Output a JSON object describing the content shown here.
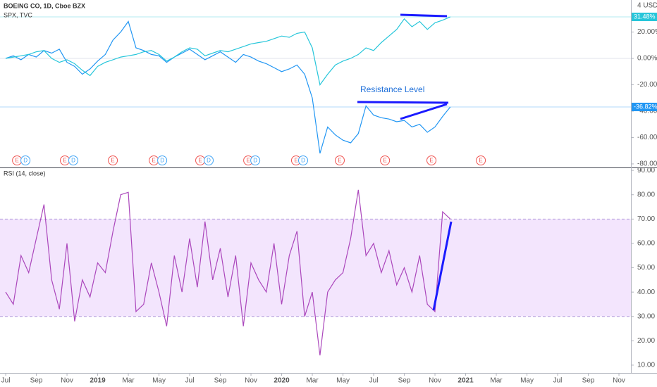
{
  "chart_data": [
    {
      "type": "line",
      "scale_label": "4 USD",
      "x": [
        0,
        0.5,
        1,
        1.5,
        2,
        2.5,
        3,
        3.5,
        4,
        4.5,
        5,
        5.5,
        6,
        6.5,
        7,
        7.5,
        8,
        8.5,
        9,
        9.5,
        10,
        10.5,
        11,
        11.5,
        12,
        12.5,
        13,
        13.5,
        14,
        14.5,
        15,
        15.5,
        16,
        16.5,
        17,
        17.5,
        18,
        18.5,
        19,
        19.5,
        20,
        20.5,
        21,
        21.5,
        22,
        22.5,
        23,
        23.5,
        24,
        24.5,
        25,
        25.5,
        26,
        26.5,
        27,
        27.5,
        28,
        28.5,
        29
      ],
      "xlim": [
        -0.37,
        40.78
      ],
      "ylim": [
        -82.7,
        44.3
      ],
      "yticks": [
        {
          "value": 20,
          "label": "20.00%"
        },
        {
          "value": 0,
          "label": "0.00%"
        },
        {
          "value": -20,
          "label": "-20.00%"
        },
        {
          "value": -40,
          "label": "-40.00%"
        },
        {
          "value": -60,
          "label": "-60.00%"
        },
        {
          "value": -80,
          "label": "-80.00%"
        }
      ],
      "series": [
        {
          "name": "BOEING CO, 1D, Cboe BZX",
          "color": "#2196f3",
          "values": [
            0,
            2,
            -1,
            3,
            1,
            6,
            4,
            7,
            -3,
            -6,
            -12,
            -8,
            -2,
            3,
            14,
            20,
            28,
            8,
            6,
            3,
            2,
            -3,
            1,
            4,
            7,
            3,
            -1,
            2,
            5,
            1,
            -3,
            3,
            1,
            -2,
            -4,
            -7,
            -10,
            -8,
            -5,
            -12,
            -30,
            -72,
            -52,
            -58,
            -62,
            -64,
            -57,
            -36,
            -43,
            -45,
            -46,
            -48,
            -47,
            -52,
            -50,
            -56,
            -52,
            -44,
            -36.82
          ],
          "last_label": {
            "value": -36.82,
            "label": "-36.82%"
          }
        },
        {
          "name": "SPX, TVC",
          "color": "#26c6da",
          "values": [
            0,
            1,
            2,
            3,
            5,
            6,
            0,
            -3,
            -1,
            -4,
            -9,
            -13,
            -6,
            -3,
            -1,
            1,
            2,
            3,
            5,
            6,
            3,
            -2,
            1,
            5,
            8,
            7,
            2,
            4,
            6,
            5,
            7,
            9,
            11,
            12,
            13,
            15,
            17,
            16,
            19,
            20,
            8,
            -20,
            -12,
            -5,
            -2,
            0,
            3,
            8,
            6,
            12,
            17,
            22,
            30,
            24,
            28,
            22,
            27,
            29,
            31.48
          ],
          "last_label": {
            "value": 31.48,
            "label": "31.48%"
          }
        }
      ],
      "annotation": "Resistance Level",
      "event_colors": {
        "E": "#ef5350",
        "D": "#42a5f5"
      },
      "events": [
        {
          "x": 0.74,
          "label": "E"
        },
        {
          "x": 1.29,
          "label": "D"
        },
        {
          "x": 3.86,
          "label": "E"
        },
        {
          "x": 4.41,
          "label": "D"
        },
        {
          "x": 6.99,
          "label": "E"
        },
        {
          "x": 9.66,
          "label": "E"
        },
        {
          "x": 10.21,
          "label": "D"
        },
        {
          "x": 12.69,
          "label": "E"
        },
        {
          "x": 13.24,
          "label": "D"
        },
        {
          "x": 15.82,
          "label": "E"
        },
        {
          "x": 16.28,
          "label": "D"
        },
        {
          "x": 18.94,
          "label": "E"
        },
        {
          "x": 19.4,
          "label": "D"
        },
        {
          "x": 21.79,
          "label": "E"
        },
        {
          "x": 24.74,
          "label": "E"
        },
        {
          "x": 27.77,
          "label": "E"
        },
        {
          "x": 30.99,
          "label": "E"
        }
      ]
    },
    {
      "type": "line",
      "title": "RSI (14, close)",
      "x": [
        0,
        0.5,
        1,
        1.5,
        2,
        2.5,
        3,
        3.5,
        4,
        4.5,
        5,
        5.5,
        6,
        6.5,
        7,
        7.5,
        8,
        8.5,
        9,
        9.5,
        10,
        10.5,
        11,
        11.5,
        12,
        12.5,
        13,
        13.5,
        14,
        14.5,
        15,
        15.5,
        16,
        16.5,
        17,
        17.5,
        18,
        18.5,
        19,
        19.5,
        20,
        20.5,
        21,
        21.5,
        22,
        22.5,
        23,
        23.5,
        24,
        24.5,
        25,
        25.5,
        26,
        26.5,
        27,
        27.5,
        28,
        28.5,
        29
      ],
      "xlim": [
        -0.37,
        40.78
      ],
      "xticks": [
        {
          "value": 0,
          "label": "Jul"
        },
        {
          "value": 2,
          "label": "Sep"
        },
        {
          "value": 4,
          "label": "Nov"
        },
        {
          "value": 6,
          "label": "2019"
        },
        {
          "value": 8,
          "label": "Mar"
        },
        {
          "value": 10,
          "label": "May"
        },
        {
          "value": 12,
          "label": "Jul"
        },
        {
          "value": 14,
          "label": "Sep"
        },
        {
          "value": 16,
          "label": "Nov"
        },
        {
          "value": 18,
          "label": "2020"
        },
        {
          "value": 20,
          "label": "Mar"
        },
        {
          "value": 22,
          "label": "May"
        },
        {
          "value": 24,
          "label": "Jul"
        },
        {
          "value": 26,
          "label": "Sep"
        },
        {
          "value": 28,
          "label": "Nov"
        },
        {
          "value": 30,
          "label": "2021"
        },
        {
          "value": 32,
          "label": "Mar"
        },
        {
          "value": 34,
          "label": "May"
        },
        {
          "value": 36,
          "label": "Jul"
        },
        {
          "value": 38,
          "label": "Sep"
        },
        {
          "value": 40,
          "label": "Nov"
        }
      ],
      "ylim": [
        6.8,
        91.2
      ],
      "yticks": [
        {
          "value": 90,
          "label": "90.00"
        },
        {
          "value": 80,
          "label": "80.00"
        },
        {
          "value": 70,
          "label": "70.00"
        },
        {
          "value": 60,
          "label": "60.00"
        },
        {
          "value": 50,
          "label": "50.00"
        },
        {
          "value": 40,
          "label": "40.00"
        },
        {
          "value": 30,
          "label": "30.00"
        },
        {
          "value": 20,
          "label": "20.00"
        },
        {
          "value": 10,
          "label": "10.00"
        }
      ],
      "band": [
        30,
        70
      ],
      "band_color": "#f3e5fd",
      "series": [
        {
          "color": "#ab47bc",
          "values": [
            40,
            35,
            55,
            48,
            62,
            76,
            45,
            33,
            60,
            28,
            45,
            38,
            52,
            48,
            65,
            80,
            81,
            32,
            35,
            52,
            40,
            26,
            55,
            40,
            62,
            42,
            69,
            45,
            58,
            38,
            55,
            26,
            52,
            45,
            40,
            60,
            35,
            55,
            65,
            30,
            40,
            14,
            40,
            45,
            48,
            62,
            82,
            55,
            60,
            48,
            57,
            43,
            50,
            40,
            55,
            35,
            32,
            73,
            70
          ]
        }
      ]
    }
  ]
}
